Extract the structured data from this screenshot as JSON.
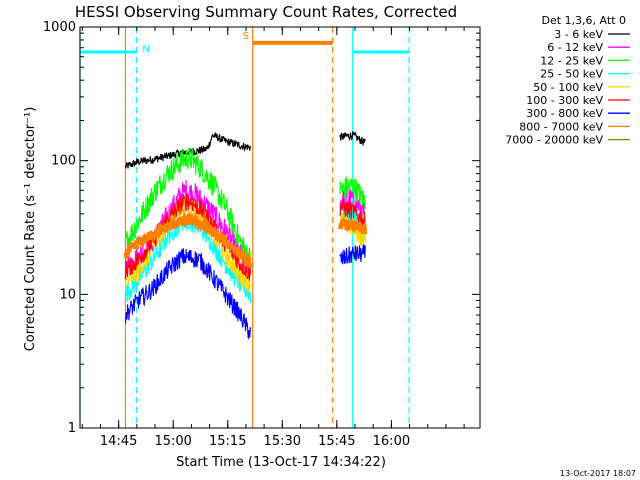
{
  "chart_data": {
    "type": "line",
    "title": "HESSI Observing Summary Count Rates, Corrected",
    "xlabel": "Start Time (13-Oct-17 14:34:22)",
    "ylabel": "Corrected Count Rate (s⁻¹ detector⁻¹)",
    "yscale": "log",
    "ylim": [
      1,
      1000
    ],
    "xlim_minutes_after_start": [
      0,
      110
    ],
    "x_tick_labels": [
      "14:45",
      "15:00",
      "15:15",
      "15:30",
      "15:45",
      "16:00"
    ],
    "x_tick_minutes": [
      10.63,
      25.63,
      40.63,
      55.63,
      70.63,
      85.63
    ],
    "y_tick_labels": [
      "1",
      "10",
      "100",
      "1000"
    ],
    "y_tick_values": [
      1,
      10,
      100,
      1000
    ],
    "legend_header": "Det 1,3,6, Att 0",
    "legend_placement": "right-of-plot",
    "footer_date": "13-Oct-2017 18:07",
    "data_segments_minutes": [
      [
        12.5,
        47.0
      ],
      [
        71.5,
        78.5
      ]
    ],
    "series": [
      {
        "name": "3 - 6 keV",
        "color": "#000000",
        "points": [
          [
            12.5,
            90
          ],
          [
            16,
            98
          ],
          [
            20,
            102
          ],
          [
            24,
            108
          ],
          [
            28,
            115
          ],
          [
            32,
            118
          ],
          [
            35,
            122
          ],
          [
            36.5,
            155
          ],
          [
            40,
            140
          ],
          [
            44,
            130
          ],
          [
            47,
            125
          ],
          [
            71.5,
            150
          ],
          [
            75,
            155
          ],
          [
            78.5,
            135
          ]
        ]
      },
      {
        "name": "6 - 12 keV",
        "color": "#ff00ff",
        "points": [
          [
            12.5,
            16
          ],
          [
            16,
            19
          ],
          [
            20,
            25
          ],
          [
            24,
            38
          ],
          [
            27,
            52
          ],
          [
            29,
            60
          ],
          [
            32,
            55
          ],
          [
            36,
            42
          ],
          [
            40,
            30
          ],
          [
            44,
            20
          ],
          [
            47,
            15
          ],
          [
            71.5,
            50
          ],
          [
            75,
            52
          ],
          [
            78.5,
            40
          ]
        ]
      },
      {
        "name": "12 - 25 keV",
        "color": "#00ff00",
        "points": [
          [
            12.5,
            24
          ],
          [
            16,
            35
          ],
          [
            20,
            55
          ],
          [
            24,
            80
          ],
          [
            28,
            100
          ],
          [
            30,
            105
          ],
          [
            33,
            90
          ],
          [
            36,
            70
          ],
          [
            40,
            45
          ],
          [
            44,
            25
          ],
          [
            47,
            18
          ],
          [
            71.5,
            60
          ],
          [
            75,
            65
          ],
          [
            78.5,
            50
          ]
        ]
      },
      {
        "name": "25 - 50 keV",
        "color": "#00ffff",
        "points": [
          [
            12.5,
            10
          ],
          [
            16,
            13
          ],
          [
            20,
            18
          ],
          [
            24,
            27
          ],
          [
            28,
            35
          ],
          [
            30,
            36
          ],
          [
            33,
            32
          ],
          [
            36,
            25
          ],
          [
            40,
            17
          ],
          [
            44,
            12
          ],
          [
            47,
            10
          ],
          [
            71.5,
            40
          ],
          [
            75,
            38
          ],
          [
            78.5,
            30
          ]
        ]
      },
      {
        "name": "50 - 100 keV",
        "color": "#ffd700",
        "points": [
          [
            12.5,
            12
          ],
          [
            16,
            15
          ],
          [
            20,
            22
          ],
          [
            24,
            33
          ],
          [
            28,
            45
          ],
          [
            30,
            47
          ],
          [
            33,
            40
          ],
          [
            36,
            30
          ],
          [
            40,
            20
          ],
          [
            44,
            14
          ],
          [
            47,
            12
          ],
          [
            71.5,
            35
          ],
          [
            75,
            32
          ],
          [
            78.5,
            25
          ]
        ]
      },
      {
        "name": "100 - 300 keV",
        "color": "#ff0000",
        "points": [
          [
            12.5,
            15
          ],
          [
            16,
            18
          ],
          [
            20,
            25
          ],
          [
            24,
            36
          ],
          [
            28,
            48
          ],
          [
            30,
            50
          ],
          [
            33,
            44
          ],
          [
            36,
            34
          ],
          [
            40,
            24
          ],
          [
            44,
            17
          ],
          [
            47,
            14
          ],
          [
            71.5,
            45
          ],
          [
            75,
            42
          ],
          [
            78.5,
            35
          ]
        ]
      },
      {
        "name": "300 - 800 keV",
        "color": "#0000ff",
        "points": [
          [
            12.5,
            7
          ],
          [
            16,
            9
          ],
          [
            20,
            11
          ],
          [
            24,
            15
          ],
          [
            28,
            19
          ],
          [
            30,
            19
          ],
          [
            33,
            18
          ],
          [
            36,
            14
          ],
          [
            40,
            10
          ],
          [
            44,
            7
          ],
          [
            47,
            5
          ],
          [
            71.5,
            18
          ],
          [
            75,
            20
          ],
          [
            78.5,
            20
          ]
        ]
      },
      {
        "name": "800 - 7000 keV",
        "color": "#ff8000",
        "points": [
          [
            12.5,
            20
          ],
          [
            16,
            24
          ],
          [
            20,
            28
          ],
          [
            24,
            32
          ],
          [
            28,
            35
          ],
          [
            30,
            36
          ],
          [
            33,
            34
          ],
          [
            36,
            30
          ],
          [
            40,
            25
          ],
          [
            44,
            20
          ],
          [
            47,
            17
          ],
          [
            71.5,
            33
          ],
          [
            75,
            33
          ],
          [
            78.5,
            30
          ]
        ]
      },
      {
        "name": "7000 - 20000 keV",
        "color": "#808000",
        "points": []
      }
    ],
    "marker_lines": [
      {
        "minute": 0.0,
        "color": "#00ffff",
        "style": "solid"
      },
      {
        "minute": 12.5,
        "color": "#ff8000",
        "style": "solid"
      },
      {
        "minute": 15.5,
        "color": "#00ffff",
        "style": "dashed"
      },
      {
        "minute": 47.5,
        "color": "#ff8000",
        "style": "solid"
      },
      {
        "minute": 69.5,
        "color": "#ff8000",
        "style": "dashed"
      },
      {
        "minute": 75.0,
        "color": "#00ffff",
        "style": "solid"
      },
      {
        "minute": 90.5,
        "color": "#00ffff",
        "style": "dashed"
      }
    ],
    "bars": [
      {
        "label": "N",
        "color": "#00ffff",
        "y": 650,
        "segments": [
          [
            0,
            15.5
          ],
          [
            75.0,
            90.5
          ]
        ]
      },
      {
        "label": "S",
        "color": "#ff8000",
        "y": 760,
        "segments": [
          [
            47.5,
            69.5
          ]
        ]
      }
    ]
  }
}
